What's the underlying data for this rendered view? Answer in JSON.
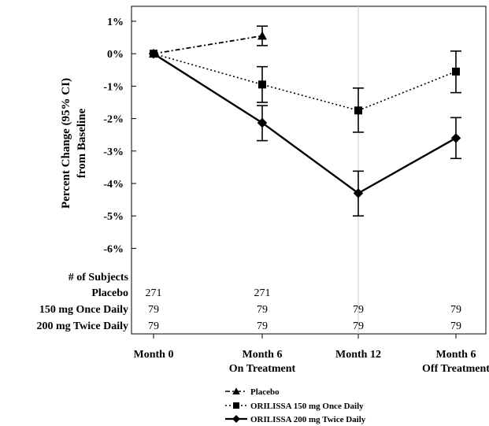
{
  "chart_data": {
    "type": "line",
    "ylabel": [
      "Percent Change (95% CI)",
      "from Baseline"
    ],
    "ylim": [
      -6,
      1
    ],
    "yticks": [
      "1%",
      "0%",
      "-1%",
      "-2%",
      "-3%",
      "-4%",
      "-5%",
      "-6%"
    ],
    "ytick_values": [
      1,
      0,
      -1,
      -2,
      -3,
      -4,
      -5,
      -6
    ],
    "x": [
      "Month 0",
      "Month 6",
      "Month 12",
      "Month 6"
    ],
    "x_sublabels": [
      "",
      "On Treatment",
      "",
      "Off Treatment"
    ],
    "grid": false,
    "series": [
      {
        "name": "Placebo",
        "marker": "triangle",
        "line_style": "dashdot",
        "color": "#000000",
        "values": [
          0.0,
          0.55,
          null,
          null
        ],
        "ci_low": [
          null,
          0.25,
          null,
          null
        ],
        "ci_high": [
          null,
          0.85,
          null,
          null
        ]
      },
      {
        "name": "ORILISSA 150 mg Once Daily",
        "marker": "square",
        "line_style": "dotted",
        "color": "#000000",
        "values": [
          0.0,
          -0.95,
          -1.75,
          -0.55
        ],
        "ci_low": [
          null,
          -1.5,
          -2.42,
          -1.2
        ],
        "ci_high": [
          null,
          -0.4,
          -1.06,
          0.08
        ]
      },
      {
        "name": "ORILISSA 200 mg Twice Daily",
        "marker": "diamond",
        "line_style": "solid",
        "color": "#000000",
        "values": [
          0.0,
          -2.13,
          -4.3,
          -2.6
        ],
        "ci_low": [
          null,
          -2.68,
          -5.0,
          -3.23
        ],
        "ci_high": [
          null,
          -1.6,
          -3.62,
          -1.97
        ]
      }
    ],
    "legend_position": "bottom-center",
    "subjects_header": "# of Subjects",
    "subjects": [
      {
        "label": "Placebo",
        "counts": [
          "271",
          "271",
          "",
          ""
        ]
      },
      {
        "label": "150 mg Once Daily",
        "counts": [
          "79",
          "79",
          "79",
          "79"
        ]
      },
      {
        "label": "200 mg Twice Daily",
        "counts": [
          "79",
          "79",
          "79",
          "79"
        ]
      }
    ]
  }
}
